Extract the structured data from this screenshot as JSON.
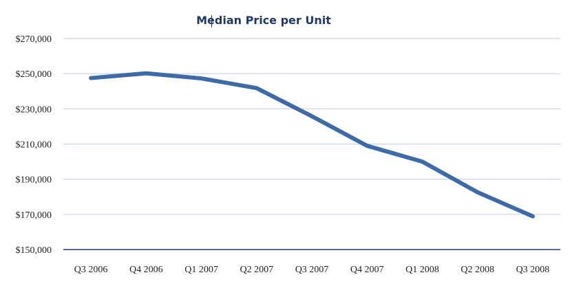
{
  "chart_data": {
    "type": "line",
    "title": "Median Price per Unit",
    "xlabel": "",
    "ylabel": "",
    "categories": [
      "Q3 2006",
      "Q4 2006",
      "Q1 2007",
      "Q2 2007",
      "Q3 2007",
      "Q4 2007",
      "Q1 2008",
      "Q2 2008",
      "Q3 2008"
    ],
    "series": [
      {
        "values": [
          247500,
          250200,
          247300,
          241800,
          225800,
          209000,
          200000,
          182600,
          168900
        ]
      }
    ],
    "ylim": [
      150000,
      270000
    ],
    "yticks": [
      150000,
      170000,
      190000,
      210000,
      230000,
      250000,
      270000
    ],
    "ytick_labels": [
      "$150,000",
      "$170,000",
      "$190,000",
      "$210,000",
      "$230,000",
      "$250,000",
      "$270,000"
    ],
    "grid": true,
    "legend": "none",
    "colors": {
      "line": "#3e6aa8",
      "grid": "#c5d3e5",
      "axis": "#1f3864",
      "title": "#1f3864"
    }
  }
}
